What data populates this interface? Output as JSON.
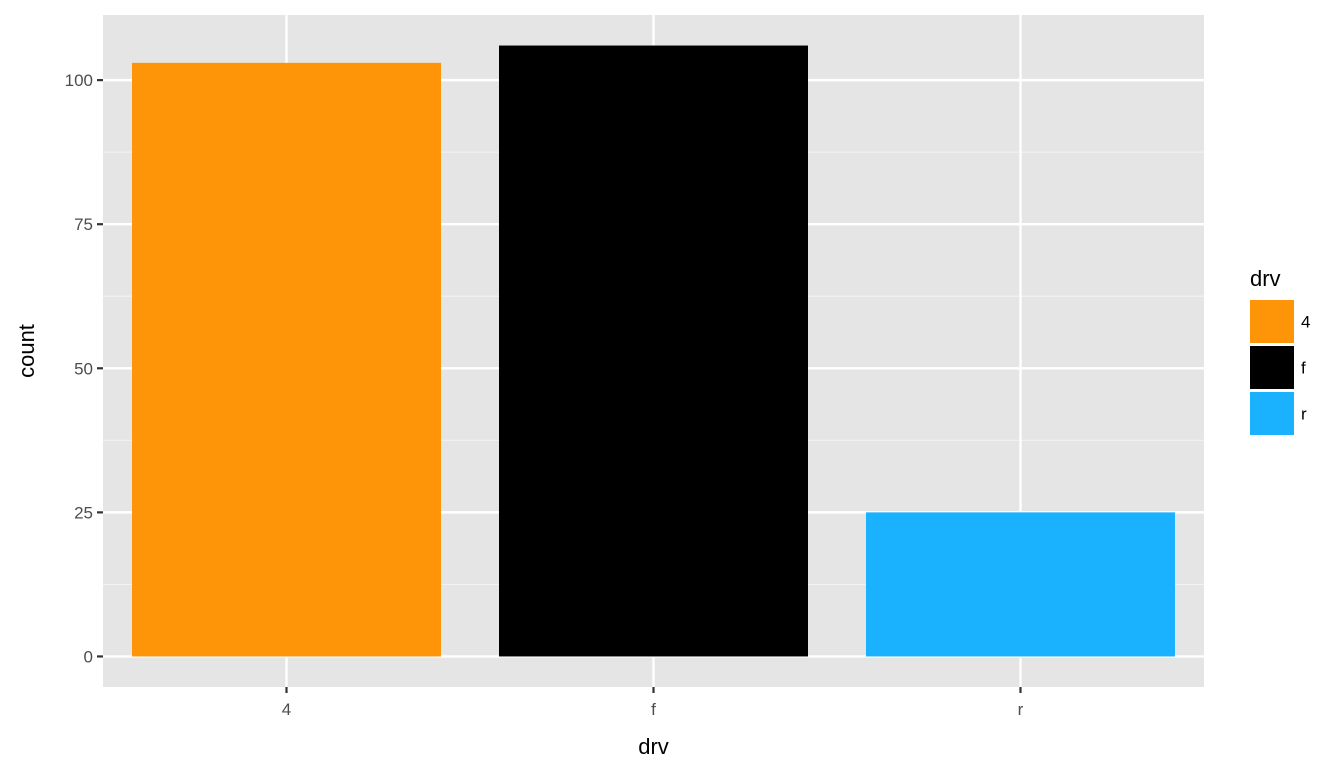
{
  "chart_data": {
    "type": "bar",
    "categories": [
      "4",
      "f",
      "r"
    ],
    "values": [
      103,
      106,
      25
    ],
    "colors": [
      "#fe9508",
      "#000000",
      "#1ab2ff"
    ],
    "xlabel": "drv",
    "ylabel": "count",
    "yticks": [
      0,
      25,
      50,
      75,
      100
    ],
    "ylim": [
      -5.3,
      111.3
    ],
    "grid": true,
    "background": "#e5e5e5",
    "legend": {
      "title": "drv",
      "placement": "right",
      "entries": [
        "4",
        "f",
        "r"
      ]
    }
  }
}
